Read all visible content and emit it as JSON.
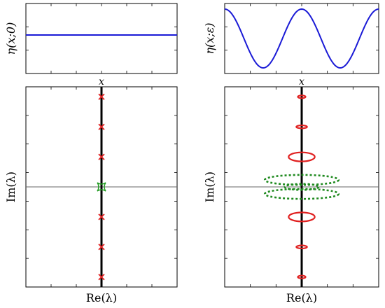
{
  "chart_data": [
    {
      "type": "line",
      "panel": "top-left",
      "xlabel": "x",
      "ylabel": "η(x;0)",
      "series": [
        {
          "kind": "constant",
          "y": 0.55
        }
      ],
      "ylim": [
        0,
        1
      ],
      "xlim": [
        0,
        1
      ],
      "color": "#1a1ad6"
    },
    {
      "type": "line",
      "panel": "top-right",
      "xlabel": "x",
      "ylabel": "η(x;ε)",
      "series": [
        {
          "kind": "cosine",
          "mean": 0.5,
          "amplitude": 0.42,
          "periods": 2
        }
      ],
      "ylim": [
        0,
        1
      ],
      "xlim": [
        0,
        1
      ],
      "color": "#1a1ad6"
    },
    {
      "type": "scatter",
      "panel": "bottom-left",
      "xlabel": "Re(λ)",
      "ylabel": "Im(λ)",
      "xlim": [
        -1,
        1
      ],
      "ylim": [
        -1,
        1
      ],
      "eigenvalues_im": [
        0.9,
        0.6,
        0.3,
        -0.3,
        -0.6,
        -0.9
      ],
      "marker_color": "#e02020",
      "origin_marker_color": "#1f9a1f"
    },
    {
      "type": "scatter",
      "panel": "bottom-right",
      "xlabel": "Re(λ)",
      "ylabel": "Im(λ)",
      "xlim": [
        -1,
        1
      ],
      "ylim": [
        -1,
        1
      ],
      "red_ellipses": [
        {
          "im": 0.9,
          "rx": 0.05,
          "ry": 0.01
        },
        {
          "im": 0.6,
          "rx": 0.07,
          "ry": 0.015
        },
        {
          "im": 0.3,
          "rx": 0.17,
          "ry": 0.045
        },
        {
          "im": -0.3,
          "rx": 0.17,
          "ry": 0.045
        },
        {
          "im": -0.6,
          "rx": 0.07,
          "ry": 0.015
        },
        {
          "im": -0.9,
          "rx": 0.05,
          "ry": 0.01
        }
      ],
      "green_dashed_ellipses": [
        {
          "im": 0.07,
          "rx": 0.48,
          "ry": 0.05
        },
        {
          "im": -0.07,
          "rx": 0.48,
          "ry": 0.05
        },
        {
          "im": 0.0,
          "rx": 0.22,
          "ry": 0.03
        }
      ],
      "red_color": "#e02020",
      "green_color": "#1f8a1f"
    }
  ]
}
